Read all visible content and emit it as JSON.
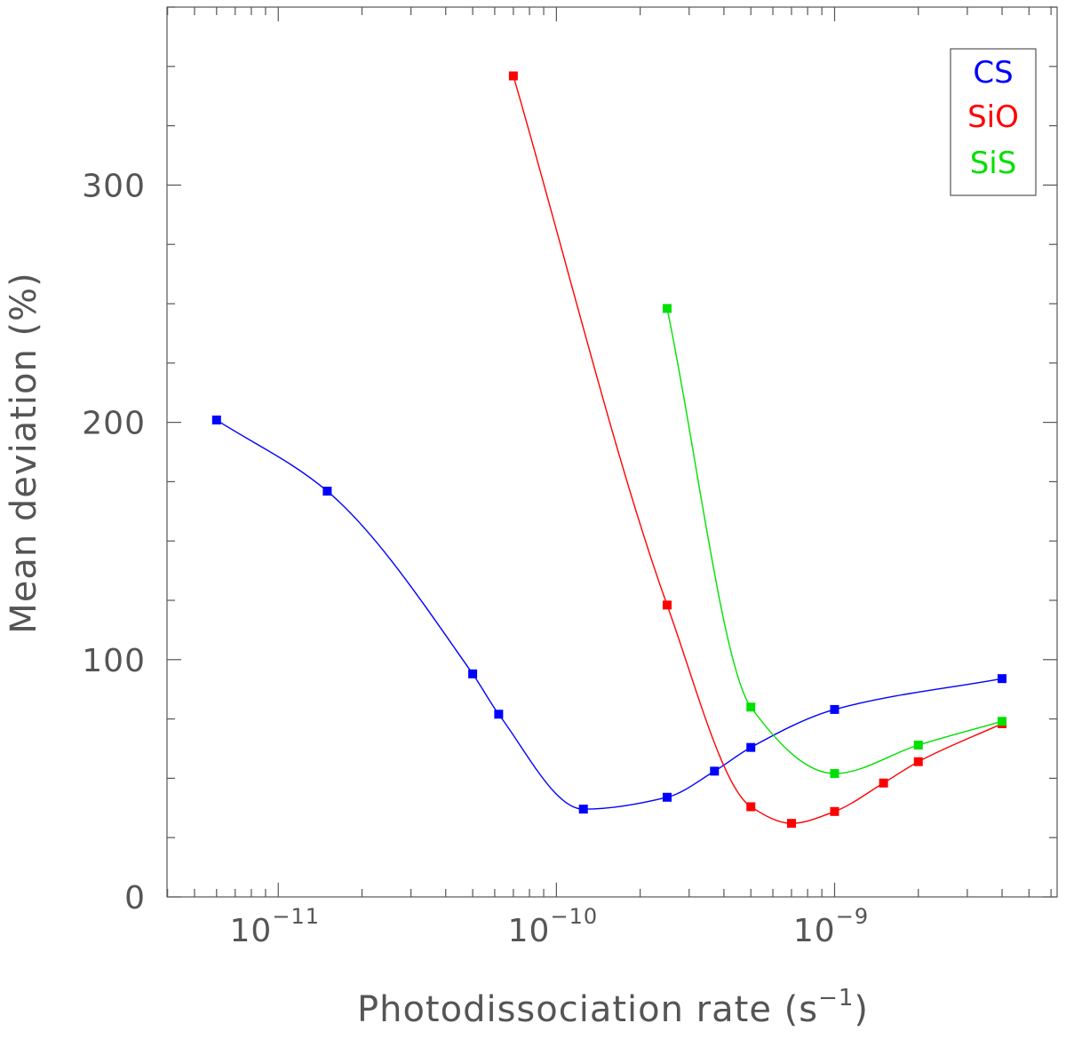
{
  "chart_data": {
    "type": "line",
    "title": "",
    "xlabel": "Photodissociation rate (s",
    "xlabel_exp": "−1",
    "xlabel_tail": ")",
    "ylabel": "Mean deviation (%)",
    "xscale": "log",
    "xlim_log10": [
      -11.4,
      -8.2
    ],
    "ylim": [
      0,
      375
    ],
    "grid": false,
    "legend_position": "top-right",
    "y_ticks": [
      {
        "value": 0,
        "label": "0"
      },
      {
        "value": 100,
        "label": "100"
      },
      {
        "value": 200,
        "label": "200"
      },
      {
        "value": 300,
        "label": "300"
      }
    ],
    "x_ticks": [
      {
        "value": 1e-11,
        "label_base": "10",
        "label_exp": "−11"
      },
      {
        "value": 1e-10,
        "label_base": "10",
        "label_exp": "−10"
      },
      {
        "value": 1e-09,
        "label_base": "10",
        "label_exp": "−9"
      }
    ],
    "series": [
      {
        "name": "CS",
        "color": "#0000ff",
        "x": [
          6e-12,
          1.5e-11,
          5e-11,
          6.2e-11,
          1.25e-10,
          2.5e-10,
          3.7e-10,
          5e-10,
          1e-09,
          4e-09
        ],
        "y": [
          201,
          171,
          94,
          77,
          37,
          42,
          53,
          63,
          79,
          92
        ]
      },
      {
        "name": "SiO",
        "color": "#ff0000",
        "x": [
          7e-11,
          2.5e-10,
          5e-10,
          7e-10,
          1e-09,
          1.5e-09,
          2e-09,
          4e-09
        ],
        "y": [
          346,
          123,
          38,
          31,
          36,
          48,
          57,
          73
        ]
      },
      {
        "name": "SiS",
        "color": "#00e000",
        "x": [
          2.5e-10,
          5e-10,
          1e-09,
          2e-09,
          4e-09
        ],
        "y": [
          248,
          80,
          52,
          64,
          74
        ]
      }
    ]
  }
}
